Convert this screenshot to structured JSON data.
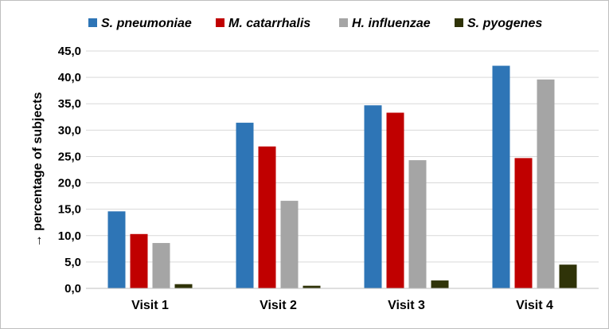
{
  "chart_data": {
    "type": "bar",
    "title": "",
    "xlabel": "",
    "ylabel": "→ percentage of subjects",
    "categories": [
      "Visit 1",
      "Visit 2",
      "Visit 3",
      "Visit 4"
    ],
    "ylim": [
      0,
      45
    ],
    "yticks": [
      "0,0",
      "5,0",
      "10,0",
      "15,0",
      "20,0",
      "25,0",
      "30,0",
      "35,0",
      "40,0",
      "45,0"
    ],
    "grid": true,
    "legend_position": "top",
    "series": [
      {
        "name": "S. pneumoniae",
        "color": "#2e75b6",
        "values": [
          14.6,
          31.4,
          34.7,
          42.2
        ]
      },
      {
        "name": "M. catarrhalis",
        "color": "#c00000",
        "values": [
          10.3,
          26.9,
          33.3,
          24.7
        ]
      },
      {
        "name": "H. influenzae",
        "color": "#a5a5a5",
        "values": [
          8.6,
          16.6,
          24.3,
          39.6
        ]
      },
      {
        "name": "S. pyogenes",
        "color": "#2f3308",
        "values": [
          0.8,
          0.5,
          1.5,
          4.5
        ]
      }
    ]
  }
}
